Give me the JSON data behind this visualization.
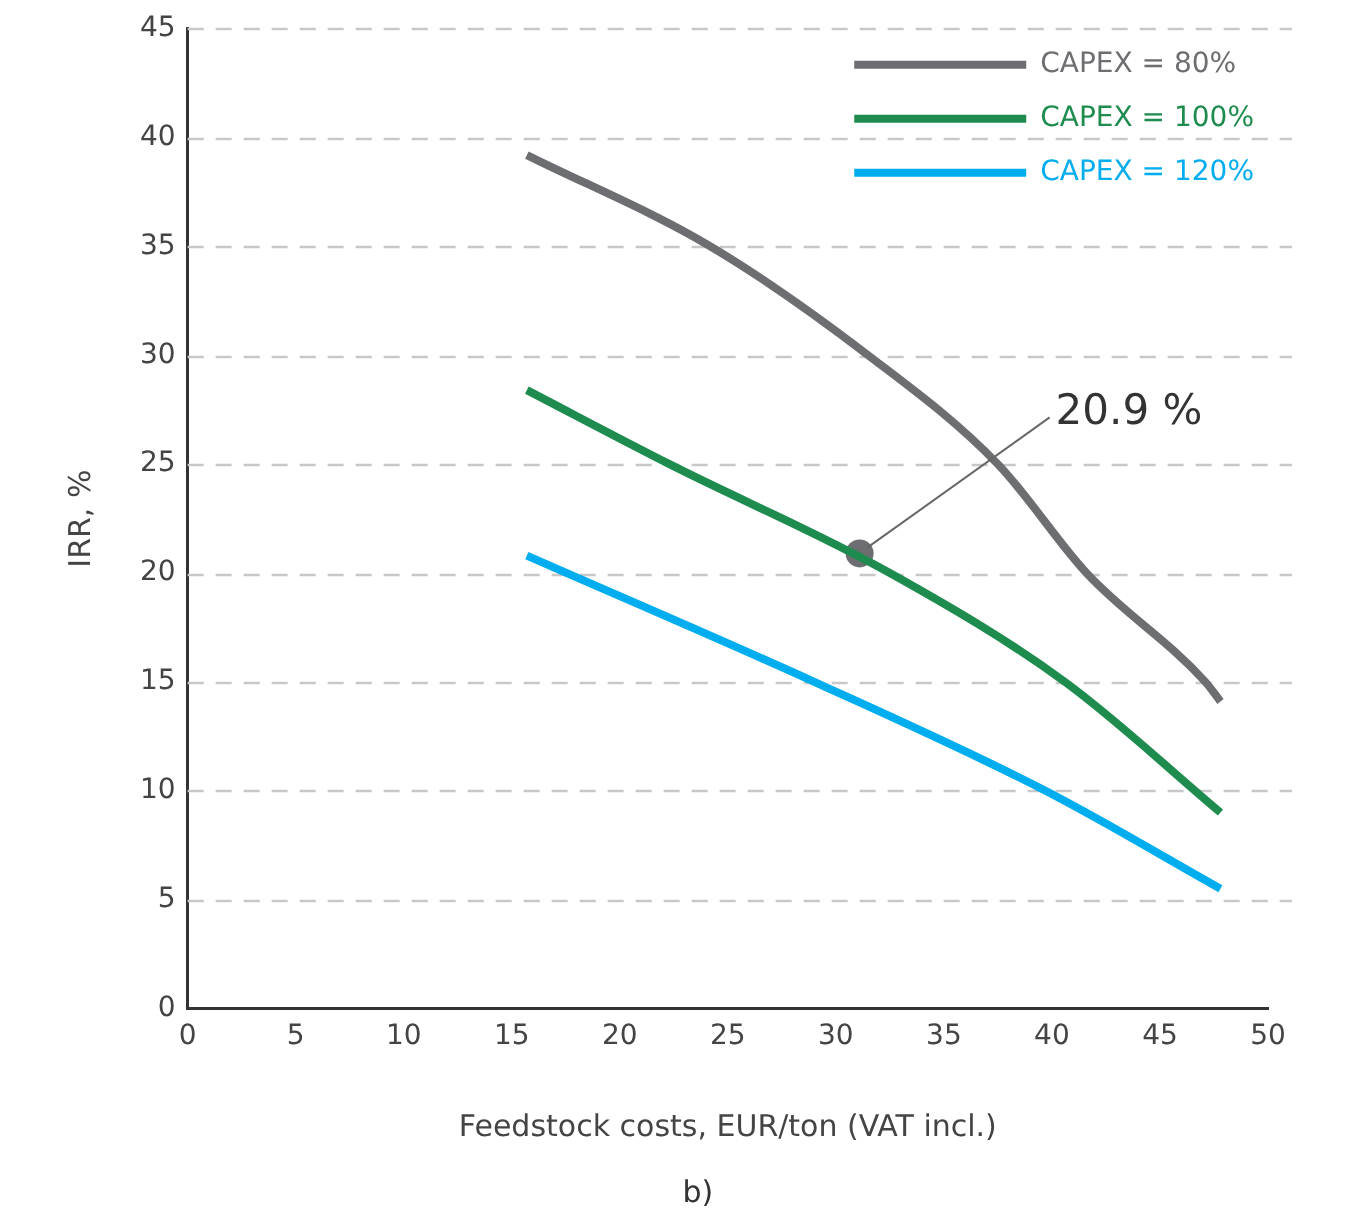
{
  "chart_data": {
    "type": "line",
    "xlabel": "Feedstock costs, EUR/ton (VAT incl.)",
    "ylabel": "IRR, %",
    "xlim": [
      0,
      50
    ],
    "xticks": [
      0,
      5,
      10,
      15,
      20,
      25,
      30,
      35,
      40,
      45,
      50
    ],
    "ylim": [
      0,
      45
    ],
    "yticks": [
      0,
      5,
      10,
      15,
      20,
      25,
      30,
      35,
      40,
      45
    ],
    "grid": "y",
    "legend": "top right",
    "marker": "none",
    "line_style": "solid",
    "series": [
      {
        "name": "CAPEX = 80%",
        "color": "#6d6e71",
        "x": [
          15.7,
          24.2,
          31.5,
          37.5,
          41.6,
          47.1,
          47.8
        ],
        "values": [
          39.2,
          35,
          30,
          25,
          20,
          15,
          14.1
        ]
      },
      {
        "name": "CAPEX = 100%",
        "color": "#1e8c4e",
        "x": [
          15.7,
          22.3,
          32.5,
          40.6,
          47.8
        ],
        "values": [
          28.4,
          25,
          20,
          15,
          9
        ]
      },
      {
        "name": "CAPEX = 120%",
        "color": "#00aeef",
        "x": [
          15.7,
          29,
          39.7,
          47.8
        ],
        "values": [
          20.8,
          15,
          10,
          5.5
        ]
      },
      {
        "type": "scatter",
        "color": "#6d6e71",
        "marker": "circle",
        "x": [
          31.1
        ],
        "values": [
          20.9
        ]
      }
    ],
    "annotations": [
      {
        "text": "20.9 %",
        "x": 31.1,
        "y": 20.9
      },
      "b)"
    ]
  }
}
